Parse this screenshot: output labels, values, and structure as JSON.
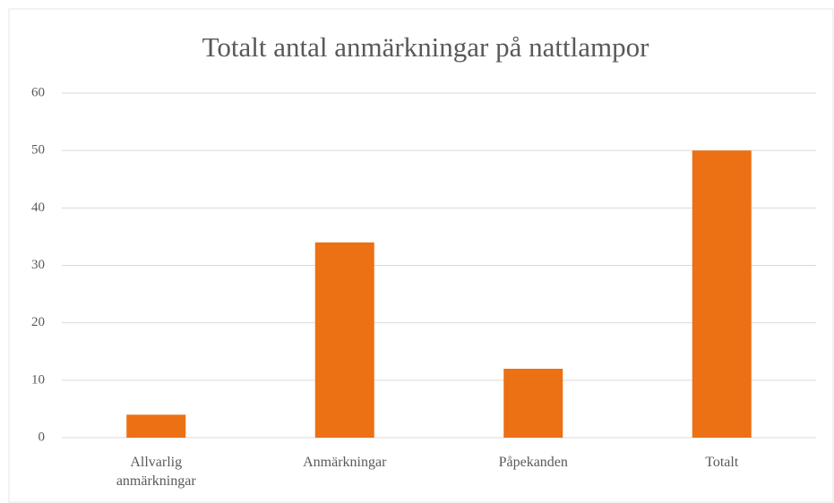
{
  "chart_data": {
    "type": "bar",
    "title": "Totalt antal anmärkningar på nattlampor",
    "categories": [
      "Allvarlig anmärkningar",
      "Anmärkningar",
      "Påpekanden",
      "Totalt"
    ],
    "values": [
      4,
      34,
      12,
      50
    ],
    "color": "#ec7014",
    "ylim": [
      0,
      60
    ],
    "yticks": [
      0,
      10,
      20,
      30,
      40,
      50,
      60
    ],
    "grid": true
  }
}
